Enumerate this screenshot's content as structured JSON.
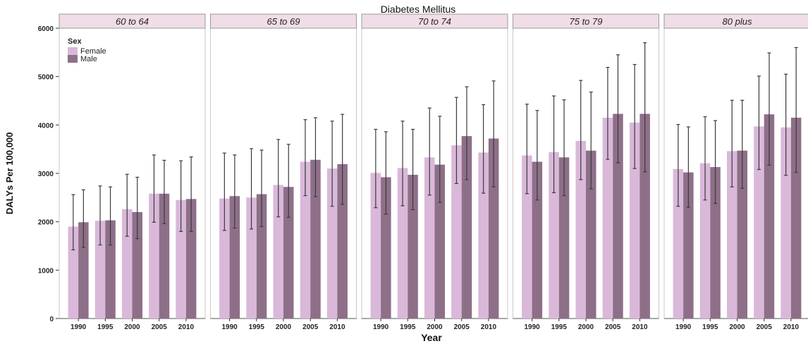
{
  "chart_data": {
    "type": "bar",
    "title": "Diabetes Mellitus",
    "xlabel": "Year",
    "ylabel": "DALYs Per 100,000",
    "ylim": [
      0,
      6000
    ],
    "yticks": [
      0,
      1000,
      2000,
      3000,
      4000,
      5000,
      6000
    ],
    "grid": false,
    "categories": [
      "1990",
      "1995",
      "2000",
      "2005",
      "2010"
    ],
    "legend": {
      "title": "Sex",
      "placement": "top-left",
      "entries": [
        "Female",
        "Male"
      ]
    },
    "colors": {
      "Female": "#d9b8d9",
      "Male": "#8e6f88",
      "strip": "#f0dde7",
      "error_bar": "#3a3a3a"
    },
    "panels": [
      {
        "label": "60 to 64",
        "series": [
          {
            "name": "Female",
            "values": [
              1900,
              2020,
              2260,
              2580,
              2450
            ],
            "lower": [
              1420,
              1520,
              1700,
              1990,
              1800
            ],
            "upper": [
              2560,
              2740,
              2980,
              3380,
              3260
            ]
          },
          {
            "name": "Male",
            "values": [
              1990,
              2030,
              2200,
              2580,
              2470
            ],
            "lower": [
              1470,
              1520,
              1650,
              1960,
              1800
            ],
            "upper": [
              2660,
              2720,
              2920,
              3270,
              3340
            ]
          }
        ]
      },
      {
        "label": "65 to 69",
        "series": [
          {
            "name": "Female",
            "values": [
              2480,
              2500,
              2760,
              3240,
              3100
            ],
            "lower": [
              1820,
              1850,
              2100,
              2540,
              2320
            ],
            "upper": [
              3420,
              3510,
              3700,
              4110,
              4080
            ]
          },
          {
            "name": "Male",
            "values": [
              2530,
              2570,
              2720,
              3280,
              3190
            ],
            "lower": [
              1870,
              1900,
              2090,
              2520,
              2360
            ],
            "upper": [
              3380,
              3480,
              3600,
              4150,
              4220
            ]
          }
        ]
      },
      {
        "label": "70 to 74",
        "series": [
          {
            "name": "Female",
            "values": [
              3010,
              3110,
              3330,
              3580,
              3430
            ],
            "lower": [
              2290,
              2330,
              2550,
              2790,
              2590
            ],
            "upper": [
              3910,
              4080,
              4350,
              4570,
              4420
            ]
          },
          {
            "name": "Male",
            "values": [
              2920,
              2970,
              3180,
              3770,
              3720
            ],
            "lower": [
              2160,
              2250,
              2400,
              2870,
              2720
            ],
            "upper": [
              3860,
              3910,
              4180,
              4790,
              4910
            ]
          }
        ]
      },
      {
        "label": "75 to 79",
        "series": [
          {
            "name": "Female",
            "values": [
              3370,
              3440,
              3670,
              4150,
              4050
            ],
            "lower": [
              2580,
              2600,
              2870,
              3290,
              3100
            ],
            "upper": [
              4430,
              4600,
              4920,
              5190,
              5250
            ]
          },
          {
            "name": "Male",
            "values": [
              3240,
              3330,
              3470,
              4230,
              4230
            ],
            "lower": [
              2450,
              2540,
              2680,
              3220,
              3030
            ],
            "upper": [
              4300,
              4520,
              4680,
              5450,
              5700
            ]
          }
        ]
      },
      {
        "label": "80 plus",
        "series": [
          {
            "name": "Female",
            "values": [
              3090,
              3210,
              3460,
              3970,
              3950
            ],
            "lower": [
              2320,
              2450,
              2720,
              3080,
              2960
            ],
            "upper": [
              4010,
              4170,
              4510,
              5010,
              5050
            ]
          },
          {
            "name": "Male",
            "values": [
              3020,
              3130,
              3470,
              4220,
              4150
            ],
            "lower": [
              2300,
              2380,
              2690,
              3170,
              3020
            ],
            "upper": [
              3960,
              4090,
              4510,
              5490,
              5600
            ]
          }
        ]
      }
    ]
  }
}
